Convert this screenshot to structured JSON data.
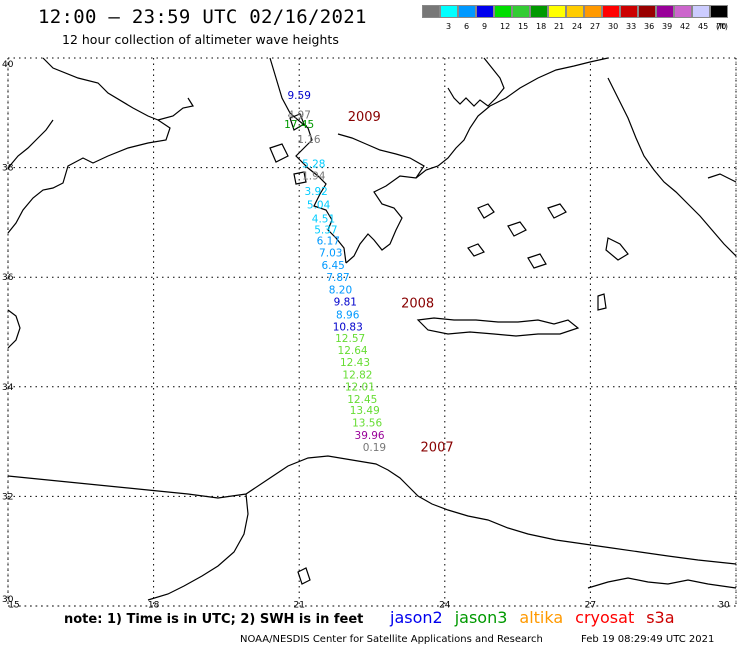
{
  "header": {
    "title": "12:00 – 23:59 UTC 02/16/2021",
    "subtitle": "12 hour collection of altimeter wave heights"
  },
  "legend": {
    "unit": "(ft)",
    "items": [
      {
        "label": "",
        "color": "#777777"
      },
      {
        "label": "3",
        "color": "#00ffff"
      },
      {
        "label": "6",
        "color": "#0099ff"
      },
      {
        "label": "9",
        "color": "#0000ee"
      },
      {
        "label": "12",
        "color": "#00dd00"
      },
      {
        "label": "15",
        "color": "#33cc33"
      },
      {
        "label": "18",
        "color": "#009900"
      },
      {
        "label": "21",
        "color": "#ffff00"
      },
      {
        "label": "24",
        "color": "#ffcc00"
      },
      {
        "label": "27",
        "color": "#ff9900"
      },
      {
        "label": "30",
        "color": "#ff0000"
      },
      {
        "label": "33",
        "color": "#cc0000"
      },
      {
        "label": "36",
        "color": "#990000"
      },
      {
        "label": "39",
        "color": "#990099"
      },
      {
        "label": "42",
        "color": "#cc66cc"
      },
      {
        "label": "45",
        "color": "#ccccff"
      },
      {
        "label": "70",
        "color": "#000000"
      }
    ]
  },
  "map": {
    "lon_ticks": [
      "15",
      "18",
      "21",
      "24",
      "27",
      "30"
    ],
    "lat_ticks": [
      "40",
      "38",
      "36",
      "34",
      "32",
      "30"
    ],
    "coastline_color": "#000000",
    "grid_color": "#000000"
  },
  "track": {
    "color_by_swh_ft": true,
    "points": [
      {
        "lon": 21.0,
        "lat": 39.25,
        "swh": "9.59",
        "color": "#0000cc"
      },
      {
        "lon": 21.0,
        "lat": 38.9,
        "swh": "4.97",
        "color": "#777777"
      },
      {
        "lon": 21.0,
        "lat": 38.72,
        "swh": "17.45",
        "color": "#009900"
      },
      {
        "lon": 21.2,
        "lat": 38.45,
        "swh": "1.16",
        "color": "#777777"
      },
      {
        "lon": 21.3,
        "lat": 38.0,
        "swh": "5.28",
        "color": "#00ccff"
      },
      {
        "lon": 21.3,
        "lat": 37.78,
        "swh": "1.94",
        "color": "#777777"
      },
      {
        "lon": 21.35,
        "lat": 37.5,
        "swh": "3.92",
        "color": "#00ccff"
      },
      {
        "lon": 21.4,
        "lat": 37.25,
        "swh": "5.04",
        "color": "#00ccff"
      },
      {
        "lon": 21.5,
        "lat": 37.0,
        "swh": "4.51",
        "color": "#00ccff"
      },
      {
        "lon": 21.55,
        "lat": 36.8,
        "swh": "5.37",
        "color": "#00ccff"
      },
      {
        "lon": 21.6,
        "lat": 36.6,
        "swh": "6.17",
        "color": "#0099ff"
      },
      {
        "lon": 21.65,
        "lat": 36.38,
        "swh": "7.03",
        "color": "#0099ff"
      },
      {
        "lon": 21.7,
        "lat": 36.15,
        "swh": "6.45",
        "color": "#0099ff"
      },
      {
        "lon": 21.8,
        "lat": 35.93,
        "swh": "7.87",
        "color": "#0099ff"
      },
      {
        "lon": 21.85,
        "lat": 35.7,
        "swh": "8.20",
        "color": "#0099ff"
      },
      {
        "lon": 21.95,
        "lat": 35.48,
        "swh": "9.81",
        "color": "#0000cc"
      },
      {
        "lon": 22.0,
        "lat": 35.25,
        "swh": "8.96",
        "color": "#0099ff"
      },
      {
        "lon": 22.0,
        "lat": 35.03,
        "swh": "10.83",
        "color": "#0000cc"
      },
      {
        "lon": 22.05,
        "lat": 34.82,
        "swh": "12.57",
        "color": "#66dd33"
      },
      {
        "lon": 22.1,
        "lat": 34.6,
        "swh": "12.64",
        "color": "#66dd33"
      },
      {
        "lon": 22.15,
        "lat": 34.38,
        "swh": "12.43",
        "color": "#66dd33"
      },
      {
        "lon": 22.2,
        "lat": 34.15,
        "swh": "12.82",
        "color": "#66dd33"
      },
      {
        "lon": 22.25,
        "lat": 33.93,
        "swh": "12.01",
        "color": "#66dd33"
      },
      {
        "lon": 22.3,
        "lat": 33.7,
        "swh": "12.45",
        "color": "#66dd33"
      },
      {
        "lon": 22.35,
        "lat": 33.5,
        "swh": "13.49",
        "color": "#66dd33"
      },
      {
        "lon": 22.4,
        "lat": 33.28,
        "swh": "13.56",
        "color": "#66dd33"
      },
      {
        "lon": 22.45,
        "lat": 33.05,
        "swh": "39.96",
        "color": "#990099"
      },
      {
        "lon": 22.55,
        "lat": 32.83,
        "swh": "0.19",
        "color": "#777777"
      }
    ],
    "time_labels": [
      {
        "lon": 22.0,
        "lat": 38.85,
        "text": "2009"
      },
      {
        "lon": 23.1,
        "lat": 35.45,
        "text": "2008"
      },
      {
        "lon": 23.5,
        "lat": 32.82,
        "text": "2007"
      }
    ],
    "time_label_color": "#880000"
  },
  "footer": {
    "note": "note: 1) Time is in UTC; 2) SWH is in feet",
    "missions": [
      {
        "name": "jason2",
        "color": "#0000ee"
      },
      {
        "name": "jason3",
        "color": "#009900"
      },
      {
        "name": "altika",
        "color": "#ff9900"
      },
      {
        "name": "cryosat",
        "color": "#ff0000"
      },
      {
        "name": "s3a",
        "color": "#cc0000"
      }
    ],
    "credit": "NOAA/NESDIS Center for Satellite Applications and Research",
    "timestamp": "Feb 19 08:29:49 UTC 2021"
  }
}
